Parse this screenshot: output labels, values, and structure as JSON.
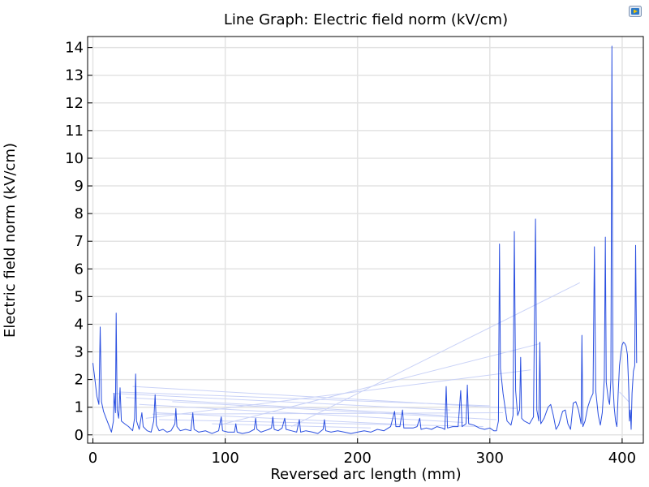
{
  "chart_data": {
    "type": "line",
    "title": "Line Graph: Electric field norm (kV/cm)",
    "xlabel": "Reversed arc length (mm)",
    "ylabel": "Electric field norm (kV/cm)",
    "xlim": [
      -4,
      416
    ],
    "ylim": [
      -0.3,
      14.4
    ],
    "x_ticks": [
      0,
      100,
      200,
      300,
      400
    ],
    "y_ticks": [
      0,
      1,
      2,
      3,
      4,
      5,
      6,
      7,
      8,
      9,
      10,
      11,
      12,
      13,
      14
    ],
    "grid": true,
    "series_color": "#2a4fe0",
    "faint_color": "#c9d2f7",
    "series": [
      {
        "values": [
          [
            0,
            2.6
          ],
          [
            1.5,
            2.0
          ],
          [
            3,
            1.4
          ],
          [
            4.5,
            1.1
          ],
          [
            5.5,
            3.9
          ],
          [
            6.5,
            1.2
          ],
          [
            8,
            0.85
          ],
          [
            10,
            0.6
          ],
          [
            12,
            0.35
          ],
          [
            14,
            0.1
          ],
          [
            15.5,
            0.5
          ],
          [
            16,
            1.5
          ],
          [
            17,
            0.8
          ],
          [
            17.6,
            4.4
          ],
          [
            18.3,
            0.9
          ],
          [
            19.5,
            0.6
          ],
          [
            20.5,
            1.7
          ],
          [
            21.5,
            0.5
          ],
          [
            24,
            0.4
          ],
          [
            27,
            0.3
          ],
          [
            30,
            0.15
          ],
          [
            31.5,
            0.6
          ],
          [
            32.3,
            2.2
          ],
          [
            33,
            0.5
          ],
          [
            35,
            0.2
          ],
          [
            37,
            0.8
          ],
          [
            38,
            0.3
          ],
          [
            41,
            0.15
          ],
          [
            44,
            0.1
          ],
          [
            46,
            0.5
          ],
          [
            47,
            1.45
          ],
          [
            48,
            0.35
          ],
          [
            50,
            0.15
          ],
          [
            53,
            0.2
          ],
          [
            56,
            0.1
          ],
          [
            59,
            0.15
          ],
          [
            62,
            0.4
          ],
          [
            62.7,
            0.95
          ],
          [
            63.5,
            0.3
          ],
          [
            66,
            0.15
          ],
          [
            70,
            0.2
          ],
          [
            74,
            0.15
          ],
          [
            75.5,
            0.8
          ],
          [
            76.5,
            0.2
          ],
          [
            80,
            0.1
          ],
          [
            85,
            0.15
          ],
          [
            90,
            0.05
          ],
          [
            95,
            0.15
          ],
          [
            97,
            0.65
          ],
          [
            98,
            0.15
          ],
          [
            102,
            0.1
          ],
          [
            107,
            0.1
          ],
          [
            108,
            0.4
          ],
          [
            109,
            0.1
          ],
          [
            113,
            0.05
          ],
          [
            118,
            0.1
          ],
          [
            122,
            0.2
          ],
          [
            123,
            0.6
          ],
          [
            124,
            0.2
          ],
          [
            127,
            0.1
          ],
          [
            130,
            0.15
          ],
          [
            133,
            0.2
          ],
          [
            135,
            0.25
          ],
          [
            136,
            0.65
          ],
          [
            137,
            0.2
          ],
          [
            140,
            0.15
          ],
          [
            143,
            0.25
          ],
          [
            145,
            0.6
          ],
          [
            146,
            0.2
          ],
          [
            150,
            0.15
          ],
          [
            154,
            0.1
          ],
          [
            156,
            0.55
          ],
          [
            157,
            0.1
          ],
          [
            161,
            0.15
          ],
          [
            166,
            0.1
          ],
          [
            170,
            0.05
          ],
          [
            174,
            0.2
          ],
          [
            175,
            0.55
          ],
          [
            176,
            0.15
          ],
          [
            180,
            0.1
          ],
          [
            185,
            0.15
          ],
          [
            190,
            0.1
          ],
          [
            195,
            0.05
          ],
          [
            200,
            0.1
          ],
          [
            205,
            0.15
          ],
          [
            210,
            0.1
          ],
          [
            215,
            0.2
          ],
          [
            220,
            0.15
          ],
          [
            225,
            0.3
          ],
          [
            228,
            0.85
          ],
          [
            229,
            0.3
          ],
          [
            232,
            0.3
          ],
          [
            234,
            0.9
          ],
          [
            235,
            0.25
          ],
          [
            238,
            0.25
          ],
          [
            242,
            0.25
          ],
          [
            245,
            0.3
          ],
          [
            247,
            0.6
          ],
          [
            248,
            0.2
          ],
          [
            252,
            0.25
          ],
          [
            256,
            0.2
          ],
          [
            260,
            0.3
          ],
          [
            264,
            0.25
          ],
          [
            266,
            0.2
          ],
          [
            267,
            1.75
          ],
          [
            268,
            0.25
          ],
          [
            272,
            0.3
          ],
          [
            276,
            0.3
          ],
          [
            278,
            1.6
          ],
          [
            279,
            0.3
          ],
          [
            282,
            0.4
          ],
          [
            283,
            1.8
          ],
          [
            284,
            0.4
          ],
          [
            288,
            0.35
          ],
          [
            292,
            0.25
          ],
          [
            296,
            0.2
          ],
          [
            300,
            0.25
          ],
          [
            303,
            0.15
          ],
          [
            305,
            0.15
          ],
          [
            306.5,
            0.5
          ],
          [
            307.3,
            6.9
          ],
          [
            308,
            2.4
          ],
          [
            310,
            1.5
          ],
          [
            313,
            0.5
          ],
          [
            316,
            0.35
          ],
          [
            317.5,
            0.7
          ],
          [
            318.5,
            7.35
          ],
          [
            319.5,
            1.6
          ],
          [
            321,
            0.7
          ],
          [
            322.5,
            0.9
          ],
          [
            323.3,
            2.8
          ],
          [
            324,
            0.6
          ],
          [
            326,
            0.5
          ],
          [
            330,
            0.4
          ],
          [
            333,
            0.65
          ],
          [
            334.5,
            7.8
          ],
          [
            335.5,
            0.9
          ],
          [
            337,
            0.5
          ],
          [
            337.8,
            3.35
          ],
          [
            338.5,
            0.4
          ],
          [
            341,
            0.6
          ],
          [
            344,
            1.0
          ],
          [
            346,
            1.1
          ],
          [
            348,
            0.7
          ],
          [
            350,
            0.2
          ],
          [
            352,
            0.35
          ],
          [
            355,
            0.85
          ],
          [
            357,
            0.9
          ],
          [
            359,
            0.4
          ],
          [
            361,
            0.2
          ],
          [
            363,
            1.15
          ],
          [
            365,
            1.2
          ],
          [
            367,
            0.9
          ],
          [
            369,
            0.4
          ],
          [
            369.6,
            3.6
          ],
          [
            370.3,
            0.3
          ],
          [
            372,
            0.5
          ],
          [
            374,
            1.0
          ],
          [
            376,
            1.3
          ],
          [
            378,
            1.5
          ],
          [
            379,
            6.8
          ],
          [
            380,
            1.6
          ],
          [
            382,
            0.7
          ],
          [
            383.5,
            0.35
          ],
          [
            385,
            0.8
          ],
          [
            386.5,
            2.0
          ],
          [
            387.3,
            7.15
          ],
          [
            388,
            1.9
          ],
          [
            389.5,
            1.3
          ],
          [
            390.5,
            1.1
          ],
          [
            391.5,
            2.0
          ],
          [
            392.3,
            14.05
          ],
          [
            393,
            1.9
          ],
          [
            394,
            1.0
          ],
          [
            395,
            0.5
          ],
          [
            396,
            0.3
          ],
          [
            397,
            1.5
          ],
          [
            398,
            2.5
          ],
          [
            399,
            2.95
          ],
          [
            400,
            3.25
          ],
          [
            401,
            3.35
          ],
          [
            402,
            3.3
          ],
          [
            403,
            3.2
          ],
          [
            404,
            2.9
          ],
          [
            404.5,
            2.3
          ],
          [
            405,
            1.6
          ],
          [
            405.5,
            0.5
          ],
          [
            406.2,
            0.9
          ],
          [
            406.8,
            0.2
          ],
          [
            407.5,
            1.5
          ],
          [
            408.5,
            2.3
          ],
          [
            409.5,
            2.5
          ],
          [
            410.2,
            6.85
          ],
          [
            411,
            2.6
          ]
        ]
      }
    ],
    "faint_segments": [
      [
        [
          368,
          5.5
        ],
        [
          150,
          0.3
        ]
      ],
      [
        [
          338,
          3.3
        ],
        [
          95,
          0.35
        ]
      ],
      [
        [
          331,
          2.35
        ],
        [
          40,
          0.6
        ]
      ],
      [
        [
          300,
          1.05
        ],
        [
          20,
          1.55
        ]
      ],
      [
        [
          320,
          0.95
        ],
        [
          30,
          1.75
        ]
      ],
      [
        [
          270,
          0.9
        ],
        [
          15,
          1.5
        ]
      ],
      [
        [
          305,
          0.55
        ],
        [
          60,
          1.2
        ]
      ],
      [
        [
          244,
          0.35
        ],
        [
          48,
          0.8
        ]
      ],
      [
        [
          210,
          0.25
        ],
        [
          90,
          0.4
        ]
      ],
      [
        [
          295,
          0.3
        ],
        [
          50,
          0.55
        ]
      ],
      [
        [
          398,
          1.55
        ],
        [
          405,
          1.2
        ]
      ],
      [
        [
          280,
          0.45
        ],
        [
          35,
          1.1
        ]
      ],
      [
        [
          265,
          0.7
        ],
        [
          25,
          1.35
        ]
      ],
      [
        [
          310,
          0.8
        ],
        [
          45,
          0.75
        ]
      ]
    ]
  }
}
